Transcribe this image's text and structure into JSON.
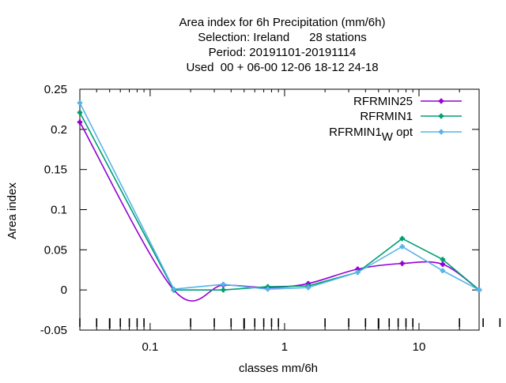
{
  "chart_data": {
    "type": "line",
    "title_lines": [
      "Area index  for 6h Precipitation (mm/6h)",
      "Selection: Ireland      28 stations",
      "Period: 20191101-20191114",
      "Used  00 + 06-00 12-06 18-12 24-18"
    ],
    "xlabel": "classes mm/6h",
    "ylabel": "Area index",
    "x_scale": "log",
    "xlim": [
      0.03,
      28
    ],
    "ylim": [
      -0.05,
      0.25
    ],
    "x_ticks": [
      {
        "value": 0.1,
        "label": "0.1"
      },
      {
        "value": 1,
        "label": "1"
      },
      {
        "value": 10,
        "label": "10"
      }
    ],
    "y_ticks": [
      {
        "value": -0.05,
        "label": "-0.05"
      },
      {
        "value": 0,
        "label": "0"
      },
      {
        "value": 0.05,
        "label": "0.05"
      },
      {
        "value": 0.1,
        "label": "0.1"
      },
      {
        "value": 0.15,
        "label": "0.15"
      },
      {
        "value": 0.2,
        "label": "0.2"
      },
      {
        "value": 0.25,
        "label": "0.25"
      }
    ],
    "grid": false,
    "legend_position": "top-right",
    "series": [
      {
        "name": "RFRMIN25",
        "color": "#9400d3",
        "smooth": true,
        "x": [
          0.03,
          0.15,
          0.35,
          0.75,
          1.5,
          3.5,
          7.5,
          15,
          28
        ],
        "y": [
          0.209,
          0.0,
          0.006,
          0.003,
          0.008,
          0.026,
          0.033,
          0.032,
          0.0
        ]
      },
      {
        "name": "RFRMIN1",
        "color": "#009e73",
        "smooth": false,
        "x": [
          0.03,
          0.15,
          0.35,
          0.75,
          1.5,
          3.5,
          7.5,
          15,
          28
        ],
        "y": [
          0.221,
          0.0,
          0.0,
          0.004,
          0.005,
          0.022,
          0.064,
          0.038,
          0.0
        ]
      },
      {
        "name": "RFRMIN1",
        "name_sub": "W",
        "name_suffix": " opt",
        "color": "#56b4e9",
        "smooth": false,
        "x": [
          0.03,
          0.15,
          0.35,
          0.75,
          1.5,
          3.5,
          7.5,
          15,
          28
        ],
        "y": [
          0.233,
          0.001,
          0.007,
          0.001,
          0.003,
          0.022,
          0.054,
          0.024,
          0.0
        ]
      }
    ]
  }
}
